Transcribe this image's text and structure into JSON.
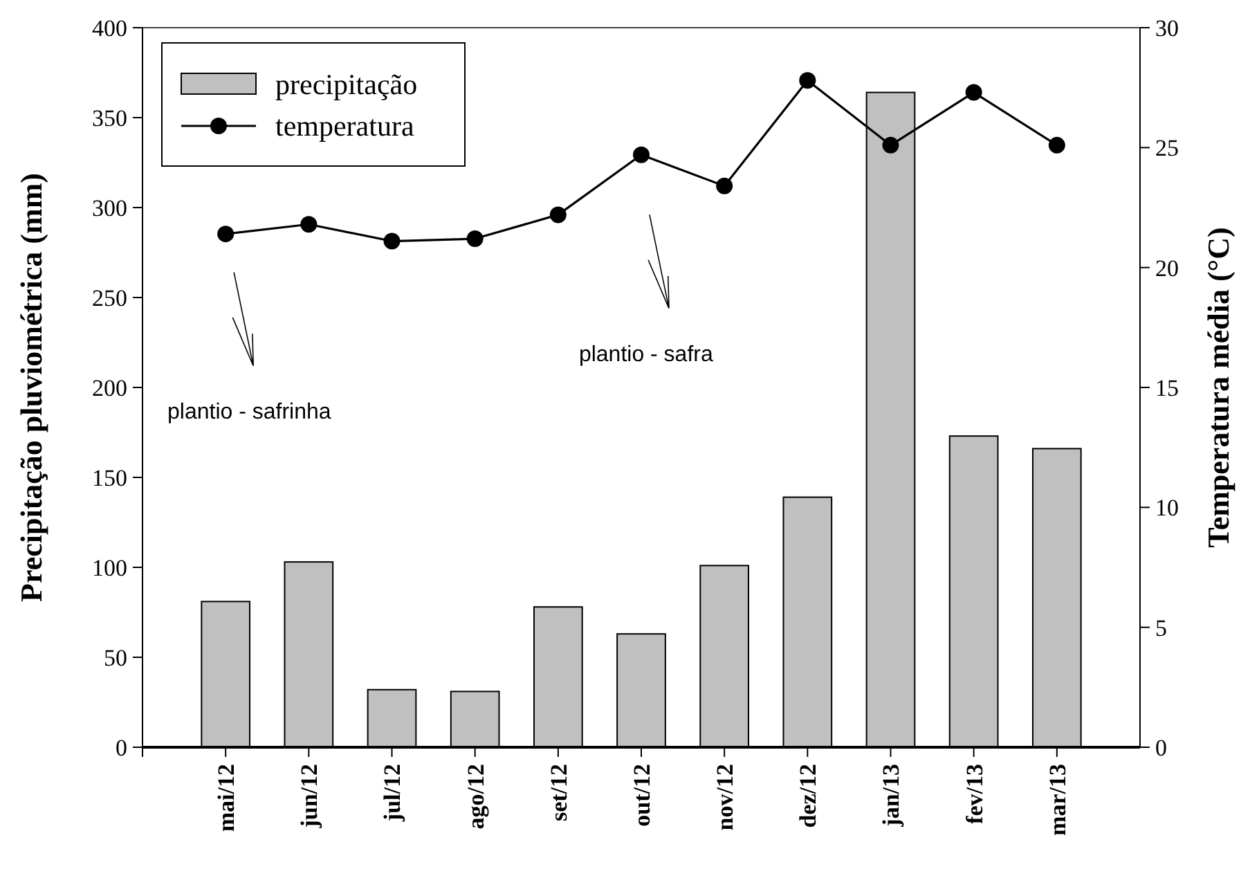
{
  "chart_data": {
    "type": "bar",
    "categories": [
      "mai/12",
      "jun/12",
      "jul/12",
      "ago/12",
      "set/12",
      "out/12",
      "nov/12",
      "dez/12",
      "jan/13",
      "fev/13",
      "mar/13"
    ],
    "ylabel": "Precipitação pluviométrica (mm)",
    "y2label": "Temperatura média (°C)",
    "series": [
      {
        "name": "precipitação",
        "color": "#c0c0c0",
        "values": [
          81,
          103,
          32,
          31,
          78,
          63,
          101,
          139,
          364,
          173,
          166
        ]
      },
      {
        "name": "temperatura",
        "type": "line",
        "axis": "y2",
        "color": "#000000",
        "marker": "circle",
        "line_style": "solid",
        "values": [
          21.4,
          21.8,
          21.1,
          21.2,
          22.2,
          24.7,
          23.4,
          27.8,
          25.1,
          27.3,
          25.1
        ]
      }
    ],
    "ylim": [
      0,
      400
    ],
    "yticks": [
      0,
      50,
      100,
      150,
      200,
      250,
      300,
      350,
      400
    ],
    "y2lim": [
      0,
      30
    ],
    "y2ticks": [
      0,
      5,
      10,
      15,
      20,
      25,
      30
    ],
    "legend": "top left",
    "grid": false,
    "annotations": [
      "plantio - safrinha",
      "plantio - safra"
    ]
  }
}
